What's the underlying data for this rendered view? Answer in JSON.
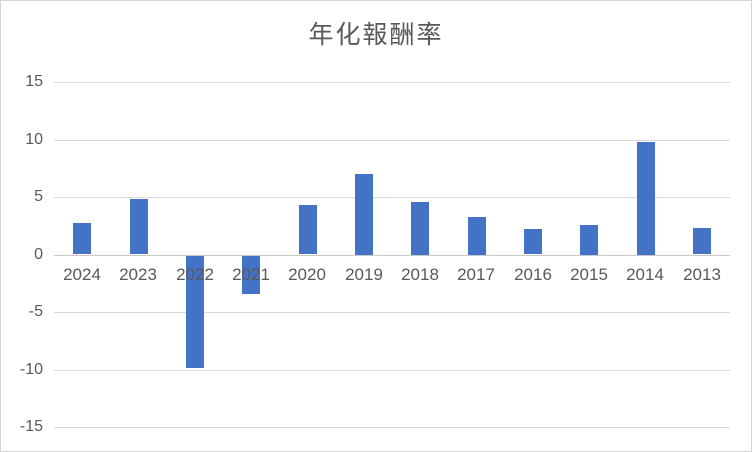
{
  "chart": {
    "title": "年化報酬率"
  },
  "chart_data": {
    "type": "bar",
    "title": "年化報酬率",
    "xlabel": "",
    "ylabel": "",
    "categories": [
      "2024",
      "2023",
      "2022",
      "2021",
      "2020",
      "2019",
      "2018",
      "2017",
      "2016",
      "2015",
      "2014",
      "2013"
    ],
    "values": [
      2.7,
      4.8,
      -9.7,
      -3.3,
      4.3,
      7.0,
      4.6,
      3.3,
      2.2,
      2.6,
      9.8,
      2.3
    ],
    "ylim": [
      -15,
      15
    ],
    "yticks": [
      15,
      10,
      5,
      0,
      -5,
      -10,
      -15
    ],
    "grid": true,
    "legend": false,
    "bar_color": "#4472c4",
    "gridline_color": "#d9d9d9",
    "zero_line_color": "#c9c9c9",
    "text_color": "#595959",
    "background_color": "#ffffff"
  }
}
